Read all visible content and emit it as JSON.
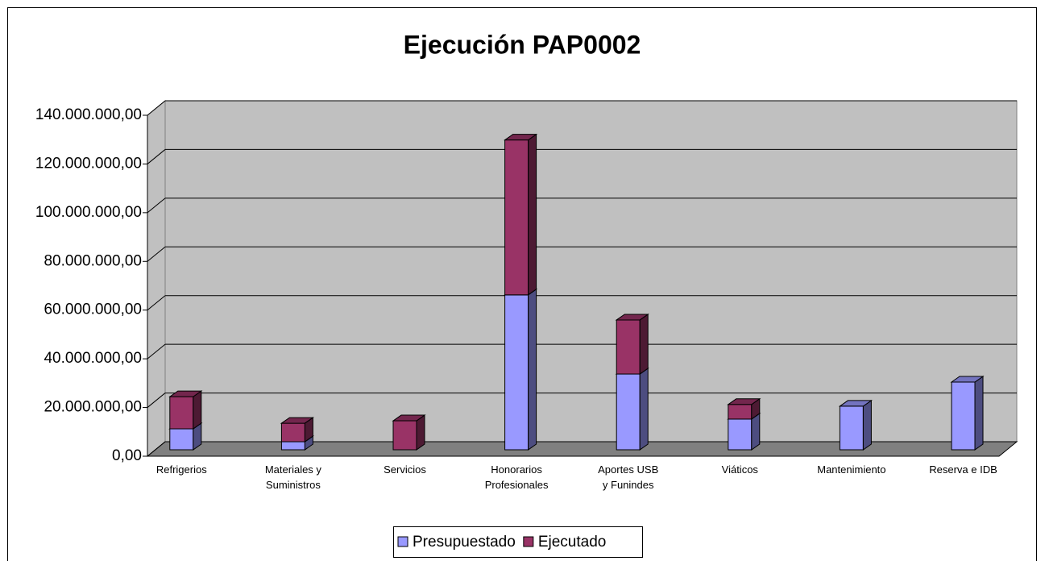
{
  "chart_data": {
    "type": "bar3d_stacked",
    "title": "Ejecución PAP0002",
    "categories": [
      "Refrigerios",
      "Materiales y\nSuministros",
      "Servicios",
      "Honorarios\nProfesionales",
      "Aportes USB\ny Funindes",
      "Viáticos",
      "Mantenimiento",
      "Reserva e IDB"
    ],
    "series": [
      {
        "name": "Presupuestado",
        "color": "#9999ff",
        "values": [
          8600000,
          3300000,
          0,
          63600000,
          31100000,
          12600000,
          17900000,
          27800000
        ]
      },
      {
        "name": "Ejecutado",
        "color": "#993366",
        "values": [
          13200000,
          7600000,
          11900000,
          63600000,
          22200000,
          6000000,
          0,
          0
        ]
      }
    ],
    "ylim": [
      0,
      140000000
    ],
    "yticks": [
      {
        "value": 0,
        "label": "0,00"
      },
      {
        "value": 20000000,
        "label": "20.000.000,00"
      },
      {
        "value": 40000000,
        "label": "40.000.000,00"
      },
      {
        "value": 60000000,
        "label": "60.000.000,00"
      },
      {
        "value": 80000000,
        "label": "80.000.000,00"
      },
      {
        "value": 100000000,
        "label": "100.000.000,00"
      },
      {
        "value": 120000000,
        "label": "120.000.000,00"
      },
      {
        "value": 140000000,
        "label": "140.000.000,00"
      }
    ],
    "grid": true,
    "legend": "bottom"
  }
}
